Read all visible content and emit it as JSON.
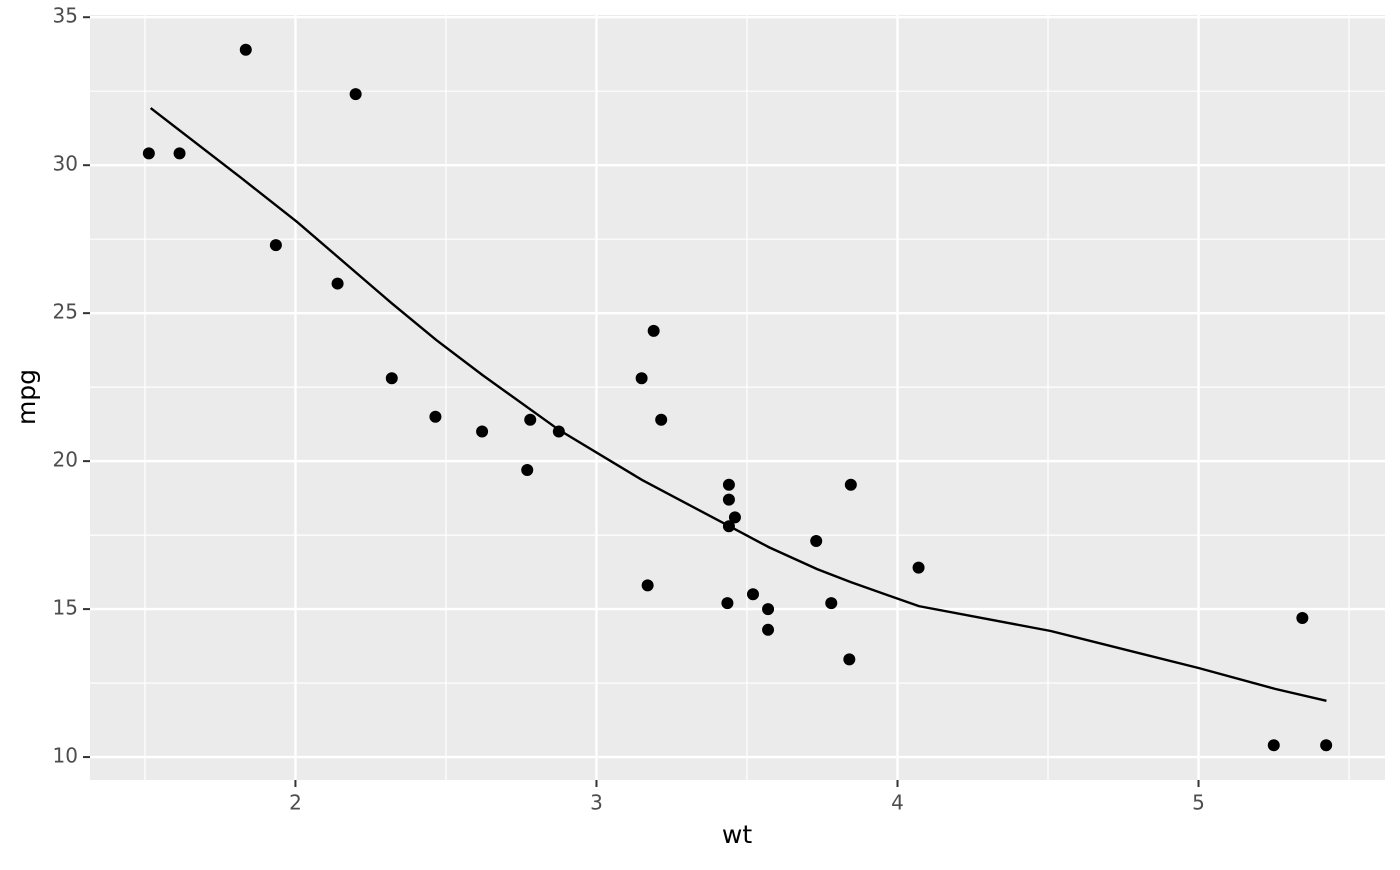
{
  "chart_data": {
    "type": "scatter",
    "x_label": "wt",
    "y_label": "mpg",
    "x": [
      2.62,
      2.875,
      2.32,
      3.215,
      3.44,
      3.46,
      3.57,
      3.19,
      3.15,
      3.44,
      3.44,
      4.07,
      3.73,
      3.78,
      5.25,
      5.424,
      5.345,
      2.2,
      1.615,
      1.835,
      2.465,
      3.52,
      3.435,
      3.84,
      3.845,
      1.935,
      2.14,
      1.513,
      3.17,
      2.77,
      3.57,
      2.78
    ],
    "y": [
      21.0,
      21.0,
      22.8,
      21.4,
      18.7,
      18.1,
      14.3,
      24.4,
      22.8,
      19.2,
      17.8,
      16.4,
      17.3,
      15.2,
      10.4,
      10.4,
      14.7,
      32.4,
      30.4,
      33.9,
      21.5,
      15.5,
      15.2,
      13.3,
      19.2,
      27.3,
      26.0,
      30.4,
      15.8,
      19.7,
      15.0,
      21.4
    ],
    "color": "#000000",
    "smooth": {
      "color": "#000000",
      "x": [
        1.519,
        1.821,
        2.007,
        2.319,
        2.468,
        2.621,
        2.876,
        3.152,
        3.447,
        3.573,
        3.733,
        3.845,
        4.071,
        4.509,
        5.0,
        5.256,
        5.425
      ],
      "y": [
        31.93,
        29.56,
        28.07,
        25.34,
        24.09,
        22.91,
        21.05,
        19.36,
        17.77,
        17.09,
        16.35,
        15.91,
        15.1,
        14.26,
        13.01,
        12.3,
        11.9
      ]
    },
    "xlim": [
      1.3175,
      5.6195
    ],
    "ylim": [
      9.225,
      35.075
    ],
    "xticks": [
      2,
      3,
      4,
      5
    ],
    "yticks": [
      10,
      15,
      20,
      25,
      30,
      35
    ],
    "xminor": [
      1.5,
      2.5,
      3.5,
      4.5,
      5.5
    ],
    "yminor": [
      12.5,
      17.5,
      22.5,
      27.5,
      32.5
    ],
    "grid": true,
    "panel_color": "#ebebeb"
  }
}
